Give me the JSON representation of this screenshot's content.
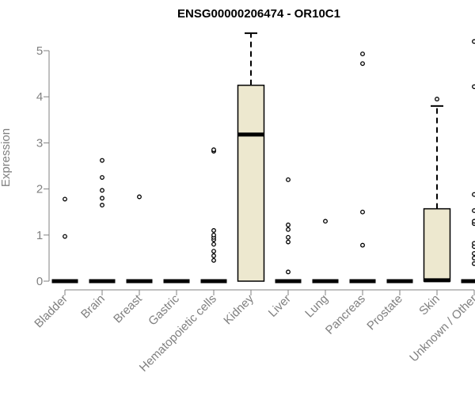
{
  "chart_data": {
    "type": "box",
    "title": "ENSG00000206474 - OR10C1",
    "ylabel": "Expression",
    "xlabel": "",
    "ylim": [
      0,
      5.5
    ],
    "yticks": [
      0,
      1,
      2,
      3,
      4,
      5
    ],
    "grid": false,
    "colors": {
      "box_fill": "#ede8cf",
      "axis": "#808080",
      "outline": "#000000"
    },
    "categories": [
      "Bladder",
      "Brain",
      "Breast",
      "Gastric",
      "Hematopoietic cells",
      "Kidney",
      "Liver",
      "Lung",
      "Pancreas",
      "Prostate",
      "Skin",
      "Unknown / Other"
    ],
    "boxes": [
      {
        "category": "Bladder",
        "q1": 0,
        "median": 0,
        "q3": 0,
        "whisker_low": 0,
        "whisker_high": 0,
        "outliers": [
          0.97,
          1.78
        ]
      },
      {
        "category": "Brain",
        "q1": 0,
        "median": 0,
        "q3": 0,
        "whisker_low": 0,
        "whisker_high": 0,
        "outliers": [
          1.65,
          1.8,
          1.97,
          2.25,
          2.62
        ]
      },
      {
        "category": "Breast",
        "q1": 0,
        "median": 0,
        "q3": 0,
        "whisker_low": 0,
        "whisker_high": 0,
        "outliers": [
          1.83
        ]
      },
      {
        "category": "Gastric",
        "q1": 0,
        "median": 0,
        "q3": 0,
        "whisker_low": 0,
        "whisker_high": 0,
        "outliers": []
      },
      {
        "category": "Hematopoietic cells",
        "q1": 0,
        "median": 0,
        "q3": 0,
        "whisker_low": 0,
        "whisker_high": 0,
        "outliers": [
          0.45,
          0.55,
          0.65,
          0.8,
          0.9,
          0.95,
          1.0,
          1.1,
          2.82,
          2.85
        ]
      },
      {
        "category": "Kidney",
        "q1": 0,
        "median": 3.18,
        "q3": 4.25,
        "whisker_low": 0,
        "whisker_high": 5.38,
        "outliers": []
      },
      {
        "category": "Liver",
        "q1": 0,
        "median": 0,
        "q3": 0,
        "whisker_low": 0,
        "whisker_high": 0,
        "outliers": [
          0.2,
          0.85,
          0.95,
          1.12,
          1.22,
          2.2
        ]
      },
      {
        "category": "Lung",
        "q1": 0,
        "median": 0,
        "q3": 0,
        "whisker_low": 0,
        "whisker_high": 0,
        "outliers": [
          1.3
        ]
      },
      {
        "category": "Pancreas",
        "q1": 0,
        "median": 0,
        "q3": 0,
        "whisker_low": 0,
        "whisker_high": 0,
        "outliers": [
          0.78,
          1.5,
          4.72,
          4.93
        ]
      },
      {
        "category": "Prostate",
        "q1": 0,
        "median": 0,
        "q3": 0,
        "whisker_low": 0,
        "whisker_high": 0,
        "outliers": []
      },
      {
        "category": "Skin",
        "q1": 0,
        "median": 0.02,
        "q3": 1.57,
        "whisker_low": 0,
        "whisker_high": 3.8,
        "outliers": [
          3.95
        ]
      },
      {
        "category": "Unknown / Other",
        "q1": 0,
        "median": 0,
        "q3": 0,
        "whisker_low": 0,
        "whisker_high": 0,
        "outliers": [
          0.38,
          0.5,
          0.6,
          0.75,
          0.82,
          1.25,
          1.3,
          1.53,
          1.88,
          4.22,
          5.2
        ]
      }
    ]
  }
}
